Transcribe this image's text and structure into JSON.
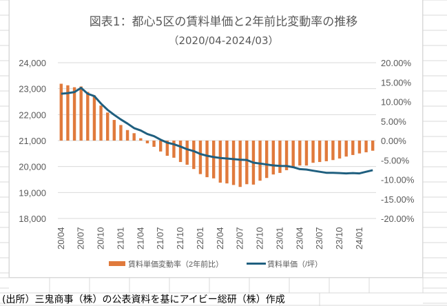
{
  "title": "図表1：都心5区の賃料単価と2年前比変動率の推移",
  "subtitle": "（2020/04-2024/03）",
  "footer": "(出所）三鬼商事（株）の公表資料を基にアイビー総研（株）作成",
  "colors": {
    "bar": "#E07A3C",
    "line": "#1F5F7F",
    "grid": "#d9d9d9",
    "axis_text": "#595959"
  },
  "chart_data": {
    "type": "bar+line",
    "title": "図表1：都心5区の賃料単価と2年前比変動率の推移",
    "subtitle": "（2020/04-2024/03）",
    "x": [
      "20/04",
      "20/05",
      "20/06",
      "20/07",
      "20/08",
      "20/09",
      "20/10",
      "20/11",
      "20/12",
      "21/01",
      "21/02",
      "21/03",
      "21/04",
      "21/05",
      "21/06",
      "21/07",
      "21/08",
      "21/09",
      "21/10",
      "21/11",
      "21/12",
      "22/01",
      "22/02",
      "22/03",
      "22/04",
      "22/05",
      "22/06",
      "22/07",
      "22/08",
      "22/09",
      "22/10",
      "22/11",
      "22/12",
      "23/01",
      "23/02",
      "23/03",
      "23/04",
      "23/05",
      "23/06",
      "23/07",
      "23/08",
      "23/09",
      "23/10",
      "23/11",
      "23/12",
      "24/01",
      "24/02",
      "24/03"
    ],
    "x_tick_labels": [
      "20/04",
      "20/07",
      "20/10",
      "21/01",
      "21/04",
      "21/07",
      "21/10",
      "22/01",
      "22/04",
      "22/07",
      "22/10",
      "23/01",
      "23/04",
      "23/07",
      "23/10",
      "24/01"
    ],
    "series": [
      {
        "name": "賃料単価変動率（2年前比）",
        "type": "bar",
        "axis": "right",
        "values": [
          14.6,
          14.2,
          13.7,
          13.9,
          12.5,
          11.6,
          9.0,
          7.2,
          5.3,
          4.0,
          2.7,
          1.9,
          0.6,
          -0.7,
          -1.6,
          -2.8,
          -3.9,
          -4.4,
          -5.5,
          -6.2,
          -7.3,
          -8.6,
          -9.4,
          -9.7,
          -10.8,
          -11.0,
          -11.4,
          -11.9,
          -11.2,
          -11.3,
          -10.3,
          -9.6,
          -8.7,
          -8.3,
          -7.6,
          -7.0,
          -6.4,
          -6.4,
          -5.7,
          -5.5,
          -5.3,
          -5.0,
          -4.6,
          -4.1,
          -3.7,
          -3.3,
          -3.0,
          -2.6
        ]
      },
      {
        "name": "賃料単価（/坪）",
        "type": "line",
        "axis": "left",
        "values": [
          22805,
          22830,
          22870,
          23030,
          22805,
          22715,
          22425,
          22185,
          21990,
          21815,
          21655,
          21480,
          21390,
          21255,
          21170,
          21035,
          20920,
          20860,
          20770,
          20665,
          20595,
          20485,
          20415,
          20365,
          20330,
          20310,
          20285,
          20265,
          20255,
          20150,
          20115,
          20080,
          20045,
          20025,
          20020,
          19975,
          19900,
          19885,
          19840,
          19800,
          19760,
          19760,
          19750,
          19735,
          19750,
          19735,
          19800,
          19860
        ]
      }
    ],
    "y_left": {
      "ticks": [
        "24,000",
        "23,000",
        "22,000",
        "21,000",
        "20,000",
        "19,000",
        "18,000"
      ],
      "range": [
        18000,
        24000
      ]
    },
    "y_right": {
      "ticks": [
        "20.00%",
        "15.00%",
        "10.00%",
        "5.00%",
        "0.00%",
        "-5.00%",
        "-10.00%",
        "-15.00%",
        "-20.00%"
      ],
      "range": [
        -20,
        20
      ]
    },
    "grid": true,
    "legend": {
      "position": "bottom",
      "entries": [
        "賃料単価変動率（2年前比）",
        "賃料単価（/坪）"
      ]
    }
  }
}
